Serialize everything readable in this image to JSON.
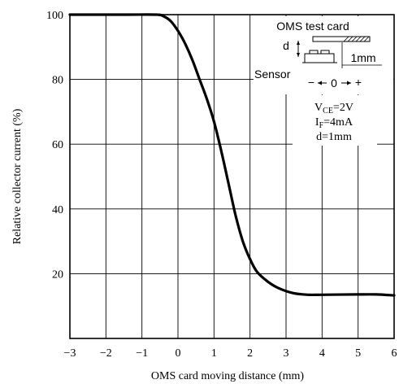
{
  "chart_data": {
    "type": "line",
    "xlabel": "OMS card moving distance  (mm)",
    "ylabel": "Relative collector current (%)",
    "xlim": [
      -3,
      6
    ],
    "ylim": [
      0,
      100
    ],
    "grid": true,
    "x_ticks": [
      "−3",
      "−2",
      "−1",
      "0",
      "1",
      "2",
      "3",
      "4",
      "5",
      "6"
    ],
    "y_ticks": [
      "20",
      "40",
      "60",
      "80",
      "100"
    ],
    "series": [
      {
        "x": [
          -3,
          -1.5,
          -0.6,
          -0.4,
          -0.2,
          0,
          0.2,
          0.4,
          0.6,
          0.8,
          1.0,
          1.2,
          1.4,
          1.6,
          1.8,
          2.0,
          2.2,
          2.5,
          2.8,
          3.2,
          3.6,
          4.0,
          5.0,
          5.5,
          6.0
        ],
        "y": [
          100,
          100,
          100,
          99.5,
          98,
          95,
          91,
          86,
          80,
          74,
          67,
          58,
          48,
          38,
          30,
          24.5,
          20.5,
          17.5,
          15.5,
          14,
          13.5,
          13.5,
          13.6,
          13.6,
          13.3
        ]
      }
    ]
  },
  "conditions": {
    "vce_main": "V",
    "vce_sub": "CE",
    "vce_value": "=2V",
    "if_main": "I",
    "if_sub": "F",
    "if_value": "=4mA",
    "d_value": "d=1mm"
  },
  "inset": {
    "card_label": "OMS test card",
    "d_label": "d",
    "width_label": "1mm",
    "sensor_label": "Sensor",
    "minus_sign": "−",
    "zero_label": "0",
    "plus_sign": "+"
  }
}
